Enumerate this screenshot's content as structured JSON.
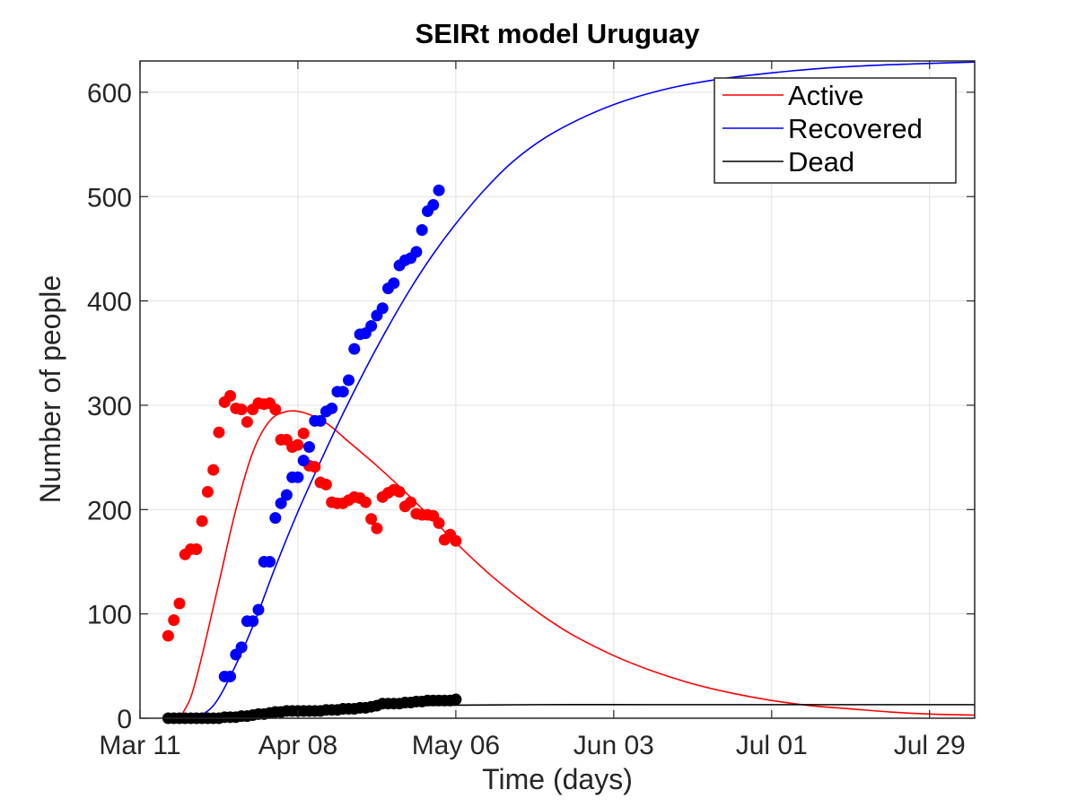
{
  "chart_data": {
    "type": "line",
    "title": "SEIRt model Uruguay",
    "xlabel": "Time (days)",
    "ylabel": "Number of people",
    "x_unit": "date",
    "xlim": [
      "2020-03-11",
      "2020-08-06"
    ],
    "ylim": [
      0,
      630
    ],
    "x_ticks": [
      "2020-03-11",
      "2020-04-08",
      "2020-05-06",
      "2020-06-03",
      "2020-07-01",
      "2020-07-29"
    ],
    "x_tick_labels": [
      "Mar 11",
      "Apr 08",
      "May 06",
      "Jun 03",
      "Jul 01",
      "Jul 29"
    ],
    "y_ticks": [
      0,
      100,
      200,
      300,
      400,
      500,
      600
    ],
    "y_tick_labels": [
      "0",
      "100",
      "200",
      "300",
      "400",
      "500",
      "600"
    ],
    "grid": true,
    "legend_position": "top-right",
    "colors": {
      "active": "#ff0000",
      "recovered": "#0000ff",
      "dead": "#000000"
    },
    "series": [
      {
        "name": "Active",
        "kind": "model_line",
        "color": "#ff0000",
        "points": [
          [
            "2020-03-18",
            0
          ],
          [
            "2020-03-20",
            20
          ],
          [
            "2020-03-22",
            60
          ],
          [
            "2020-03-25",
            130
          ],
          [
            "2020-03-28",
            200
          ],
          [
            "2020-03-31",
            255
          ],
          [
            "2020-04-03",
            285
          ],
          [
            "2020-04-06",
            294
          ],
          [
            "2020-04-09",
            293
          ],
          [
            "2020-04-13",
            283
          ],
          [
            "2020-04-17",
            265
          ],
          [
            "2020-04-22",
            242
          ],
          [
            "2020-04-27",
            217
          ],
          [
            "2020-05-02",
            190
          ],
          [
            "2020-05-07",
            163
          ],
          [
            "2020-05-12",
            138
          ],
          [
            "2020-05-17",
            116
          ],
          [
            "2020-05-22",
            96
          ],
          [
            "2020-05-27",
            79
          ],
          [
            "2020-06-03",
            60
          ],
          [
            "2020-06-10",
            45
          ],
          [
            "2020-06-17",
            33
          ],
          [
            "2020-06-24",
            24
          ],
          [
            "2020-07-01",
            17
          ],
          [
            "2020-07-08",
            12
          ],
          [
            "2020-07-15",
            9
          ],
          [
            "2020-07-22",
            6
          ],
          [
            "2020-07-29",
            4
          ],
          [
            "2020-08-06",
            3
          ]
        ]
      },
      {
        "name": "Recovered",
        "kind": "model_line",
        "color": "#0000ff",
        "points": [
          [
            "2020-03-21",
            0
          ],
          [
            "2020-03-24",
            12
          ],
          [
            "2020-03-27",
            40
          ],
          [
            "2020-03-31",
            88
          ],
          [
            "2020-04-04",
            145
          ],
          [
            "2020-04-08",
            198
          ],
          [
            "2020-04-12",
            246
          ],
          [
            "2020-04-16",
            292
          ],
          [
            "2020-04-20",
            335
          ],
          [
            "2020-04-24",
            375
          ],
          [
            "2020-04-28",
            412
          ],
          [
            "2020-05-02",
            445
          ],
          [
            "2020-05-06",
            474
          ],
          [
            "2020-05-11",
            506
          ],
          [
            "2020-05-16",
            533
          ],
          [
            "2020-05-22",
            557
          ],
          [
            "2020-05-29",
            577
          ],
          [
            "2020-06-05",
            592
          ],
          [
            "2020-06-13",
            604
          ],
          [
            "2020-06-21",
            612
          ],
          [
            "2020-06-30",
            618
          ],
          [
            "2020-07-10",
            623
          ],
          [
            "2020-07-20",
            626
          ],
          [
            "2020-07-31",
            628
          ],
          [
            "2020-08-06",
            629
          ]
        ]
      },
      {
        "name": "Dead",
        "kind": "model_line",
        "color": "#000000",
        "points": [
          [
            "2020-03-24",
            0
          ],
          [
            "2020-03-29",
            2
          ],
          [
            "2020-04-03",
            5
          ],
          [
            "2020-04-09",
            8
          ],
          [
            "2020-04-15",
            10
          ],
          [
            "2020-04-21",
            11
          ],
          [
            "2020-04-28",
            12
          ],
          [
            "2020-05-06",
            12.5
          ],
          [
            "2020-05-20",
            13
          ],
          [
            "2020-06-10",
            13
          ],
          [
            "2020-07-01",
            13
          ],
          [
            "2020-08-06",
            13
          ]
        ]
      },
      {
        "kind": "observed_points",
        "color": "#ff0000",
        "points": [
          [
            "2020-03-16",
            79
          ],
          [
            "2020-03-17",
            94
          ],
          [
            "2020-03-18",
            110
          ],
          [
            "2020-03-19",
            157
          ],
          [
            "2020-03-20",
            162
          ],
          [
            "2020-03-21",
            162
          ],
          [
            "2020-03-22",
            189
          ],
          [
            "2020-03-23",
            217
          ],
          [
            "2020-03-24",
            238
          ],
          [
            "2020-03-25",
            274
          ],
          [
            "2020-03-26",
            303
          ],
          [
            "2020-03-27",
            309
          ],
          [
            "2020-03-28",
            297
          ],
          [
            "2020-03-29",
            296
          ],
          [
            "2020-03-30",
            284
          ],
          [
            "2020-03-31",
            296
          ],
          [
            "2020-04-01",
            302
          ],
          [
            "2020-04-02",
            301
          ],
          [
            "2020-04-03",
            302
          ],
          [
            "2020-04-04",
            296
          ],
          [
            "2020-04-05",
            267
          ],
          [
            "2020-04-06",
            267
          ],
          [
            "2020-04-07",
            260
          ],
          [
            "2020-04-08",
            262
          ],
          [
            "2020-04-09",
            273
          ],
          [
            "2020-04-10",
            242
          ],
          [
            "2020-04-11",
            241
          ],
          [
            "2020-04-12",
            226
          ],
          [
            "2020-04-13",
            224
          ],
          [
            "2020-04-14",
            207
          ],
          [
            "2020-04-15",
            206
          ],
          [
            "2020-04-16",
            206
          ],
          [
            "2020-04-17",
            209
          ],
          [
            "2020-04-18",
            212
          ],
          [
            "2020-04-19",
            211
          ],
          [
            "2020-04-20",
            207
          ],
          [
            "2020-04-21",
            191
          ],
          [
            "2020-04-22",
            182
          ],
          [
            "2020-04-23",
            212
          ],
          [
            "2020-04-24",
            216
          ],
          [
            "2020-04-25",
            219
          ],
          [
            "2020-04-26",
            217
          ],
          [
            "2020-04-27",
            203
          ],
          [
            "2020-04-28",
            207
          ],
          [
            "2020-04-29",
            196
          ],
          [
            "2020-04-30",
            195
          ],
          [
            "2020-05-01",
            195
          ],
          [
            "2020-05-02",
            194
          ],
          [
            "2020-05-03",
            187
          ],
          [
            "2020-05-04",
            171
          ],
          [
            "2020-05-05",
            176
          ],
          [
            "2020-05-06",
            170
          ]
        ]
      },
      {
        "kind": "observed_points",
        "color": "#0000ff",
        "points": [
          [
            "2020-03-26",
            40
          ],
          [
            "2020-03-27",
            40
          ],
          [
            "2020-03-28",
            61
          ],
          [
            "2020-03-29",
            68
          ],
          [
            "2020-03-30",
            93
          ],
          [
            "2020-03-31",
            93
          ],
          [
            "2020-04-01",
            104
          ],
          [
            "2020-04-02",
            150
          ],
          [
            "2020-04-03",
            150
          ],
          [
            "2020-04-04",
            192
          ],
          [
            "2020-04-05",
            206
          ],
          [
            "2020-04-06",
            214
          ],
          [
            "2020-04-07",
            231
          ],
          [
            "2020-04-08",
            231
          ],
          [
            "2020-04-09",
            247
          ],
          [
            "2020-04-10",
            260
          ],
          [
            "2020-04-11",
            285
          ],
          [
            "2020-04-12",
            285
          ],
          [
            "2020-04-13",
            294
          ],
          [
            "2020-04-14",
            297
          ],
          [
            "2020-04-15",
            313
          ],
          [
            "2020-04-16",
            313
          ],
          [
            "2020-04-17",
            324
          ],
          [
            "2020-04-18",
            354
          ],
          [
            "2020-04-19",
            368
          ],
          [
            "2020-04-20",
            369
          ],
          [
            "2020-04-21",
            376
          ],
          [
            "2020-04-22",
            386
          ],
          [
            "2020-04-23",
            393
          ],
          [
            "2020-04-24",
            412
          ],
          [
            "2020-04-25",
            417
          ],
          [
            "2020-04-26",
            434
          ],
          [
            "2020-04-27",
            439
          ],
          [
            "2020-04-28",
            441
          ],
          [
            "2020-04-29",
            447
          ],
          [
            "2020-04-30",
            468
          ],
          [
            "2020-05-01",
            486
          ],
          [
            "2020-05-02",
            492
          ],
          [
            "2020-05-03",
            506
          ]
        ]
      },
      {
        "kind": "observed_points",
        "color": "#000000",
        "points": [
          [
            "2020-03-16",
            0
          ],
          [
            "2020-03-17",
            0
          ],
          [
            "2020-03-18",
            0
          ],
          [
            "2020-03-19",
            0
          ],
          [
            "2020-03-20",
            0
          ],
          [
            "2020-03-21",
            0
          ],
          [
            "2020-03-22",
            0
          ],
          [
            "2020-03-23",
            0
          ],
          [
            "2020-03-24",
            0
          ],
          [
            "2020-03-25",
            0
          ],
          [
            "2020-03-26",
            1
          ],
          [
            "2020-03-27",
            1
          ],
          [
            "2020-03-28",
            1
          ],
          [
            "2020-03-29",
            2
          ],
          [
            "2020-03-30",
            2
          ],
          [
            "2020-03-31",
            3
          ],
          [
            "2020-04-01",
            4
          ],
          [
            "2020-04-02",
            4
          ],
          [
            "2020-04-03",
            5
          ],
          [
            "2020-04-04",
            6
          ],
          [
            "2020-04-05",
            6
          ],
          [
            "2020-04-06",
            7
          ],
          [
            "2020-04-07",
            7
          ],
          [
            "2020-04-08",
            7
          ],
          [
            "2020-04-09",
            7
          ],
          [
            "2020-04-10",
            7
          ],
          [
            "2020-04-11",
            7
          ],
          [
            "2020-04-12",
            7
          ],
          [
            "2020-04-13",
            8
          ],
          [
            "2020-04-14",
            8
          ],
          [
            "2020-04-15",
            8
          ],
          [
            "2020-04-16",
            9
          ],
          [
            "2020-04-17",
            9
          ],
          [
            "2020-04-18",
            9
          ],
          [
            "2020-04-19",
            10
          ],
          [
            "2020-04-20",
            10
          ],
          [
            "2020-04-21",
            11
          ],
          [
            "2020-04-22",
            12
          ],
          [
            "2020-04-23",
            14
          ],
          [
            "2020-04-24",
            14
          ],
          [
            "2020-04-25",
            14
          ],
          [
            "2020-04-26",
            14
          ],
          [
            "2020-04-27",
            15
          ],
          [
            "2020-04-28",
            15
          ],
          [
            "2020-04-29",
            16
          ],
          [
            "2020-04-30",
            16
          ],
          [
            "2020-05-01",
            17
          ],
          [
            "2020-05-02",
            17
          ],
          [
            "2020-05-03",
            17
          ],
          [
            "2020-05-04",
            17
          ],
          [
            "2020-05-05",
            17
          ],
          [
            "2020-05-06",
            18
          ]
        ]
      }
    ]
  }
}
